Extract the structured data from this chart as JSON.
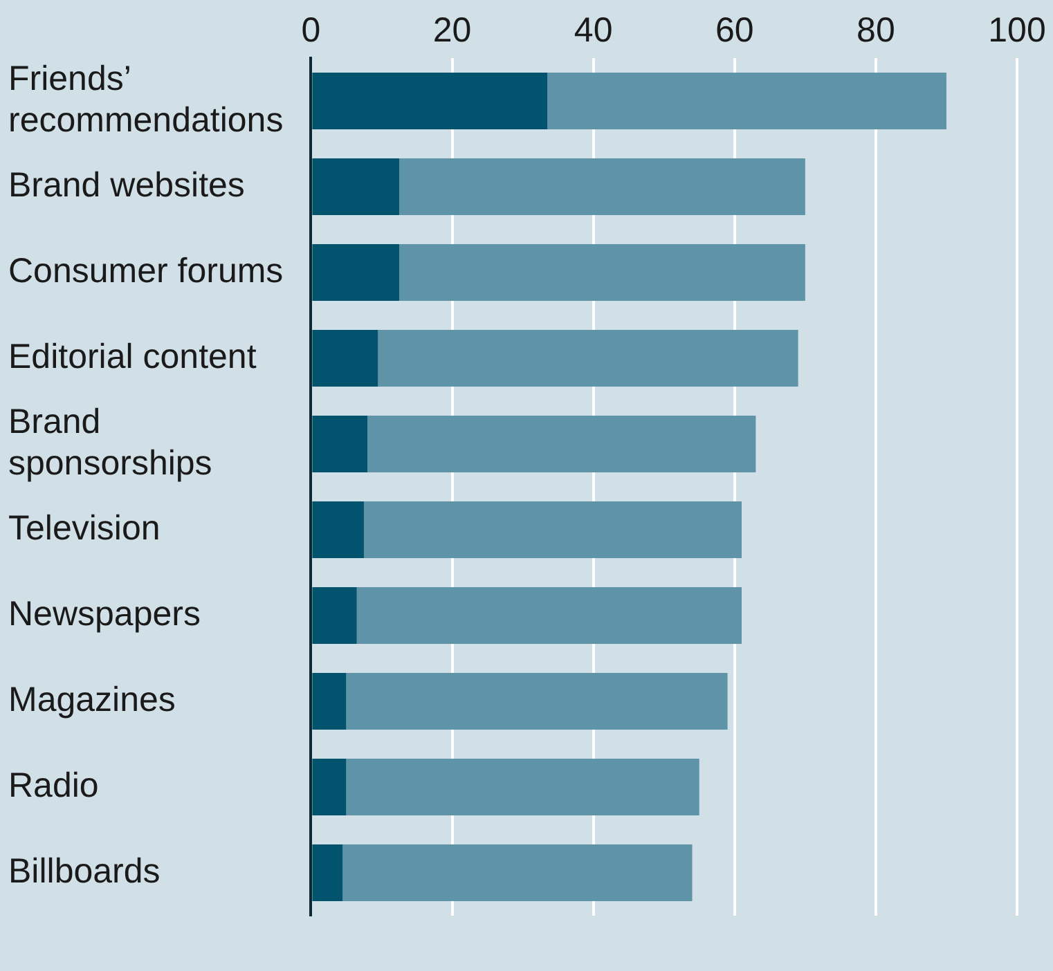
{
  "chart_data": {
    "type": "bar",
    "orientation": "horizontal",
    "stacked": true,
    "categories": [
      "Friends’ recommendations",
      "Brand websites",
      "Consumer forums",
      "Editorial content",
      "Brand sponsorships",
      "Television",
      "Newspapers",
      "Magazines",
      "Radio",
      "Billboards"
    ],
    "series": [
      {
        "color": "#02536d",
        "values": [
          33.5,
          12.5,
          12.5,
          9.5,
          8,
          7.5,
          6.5,
          5,
          5,
          4.5
        ]
      },
      {
        "color": "#5f93a8",
        "values": [
          56.5,
          57.5,
          57.5,
          59.5,
          55,
          53.5,
          54.5,
          54,
          50,
          49.5
        ]
      }
    ],
    "xlim": [
      0,
      100
    ],
    "xticks": [
      0,
      20,
      40,
      60,
      80,
      100
    ],
    "grid": "x",
    "legend": false
  }
}
